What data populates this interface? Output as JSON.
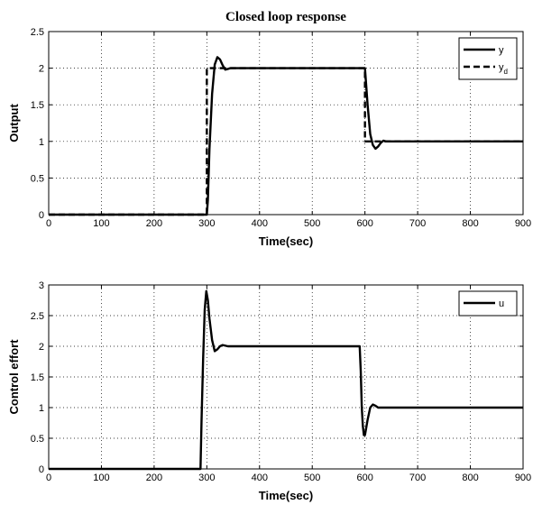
{
  "chart_data": [
    {
      "type": "line",
      "title": "Closed loop response",
      "xlabel": "Time(sec)",
      "ylabel": "Output",
      "xlim": [
        0,
        900
      ],
      "ylim": [
        0,
        2.5
      ],
      "xticks": [
        0,
        100,
        200,
        300,
        400,
        500,
        600,
        700,
        800,
        900
      ],
      "yticks": [
        0,
        0.5,
        1,
        1.5,
        2,
        2.5
      ],
      "grid": true,
      "legend_position": "top-right",
      "series": [
        {
          "name": "y",
          "style": "solid",
          "color": "#000000",
          "x": [
            0,
            300,
            302,
            305,
            310,
            315,
            320,
            325,
            330,
            335,
            340,
            345,
            350,
            600,
            602,
            605,
            610,
            615,
            620,
            625,
            630,
            635,
            640,
            645,
            900
          ],
          "y": [
            0,
            0,
            0.2,
            0.9,
            1.65,
            2.05,
            2.15,
            2.12,
            2.04,
            1.98,
            1.99,
            2.0,
            2.0,
            2.0,
            1.8,
            1.5,
            1.1,
            0.95,
            0.9,
            0.93,
            0.98,
            1.01,
            1.0,
            1.0,
            1.0
          ]
        },
        {
          "name": "y_d",
          "style": "dashed",
          "color": "#000000",
          "x": [
            0,
            300,
            300,
            600,
            600,
            900
          ],
          "y": [
            0,
            0,
            2,
            2,
            1,
            1
          ]
        }
      ]
    },
    {
      "type": "line",
      "title": "",
      "xlabel": "Time(sec)",
      "ylabel": "Control effort",
      "xlim": [
        0,
        900
      ],
      "ylim": [
        0,
        3
      ],
      "xticks": [
        0,
        100,
        200,
        300,
        400,
        500,
        600,
        700,
        800,
        900
      ],
      "yticks": [
        0,
        0.5,
        1,
        1.5,
        2,
        2.5,
        3
      ],
      "grid": true,
      "legend_position": "top-right",
      "series": [
        {
          "name": "u",
          "style": "solid",
          "color": "#000000",
          "x": [
            0,
            288,
            290,
            293,
            296,
            299,
            302,
            305,
            310,
            315,
            320,
            325,
            330,
            340,
            350,
            590,
            592,
            594,
            596,
            598,
            600,
            605,
            610,
            615,
            620,
            625,
            630,
            640,
            900
          ],
          "y": [
            0,
            0,
            0.8,
            1.8,
            2.6,
            2.9,
            2.75,
            2.45,
            2.1,
            1.92,
            1.95,
            2.0,
            2.02,
            2.0,
            2.0,
            2.0,
            1.6,
            1.0,
            0.7,
            0.55,
            0.55,
            0.8,
            1.0,
            1.05,
            1.03,
            1.0,
            1.0,
            1.0,
            1.0
          ]
        }
      ]
    }
  ]
}
